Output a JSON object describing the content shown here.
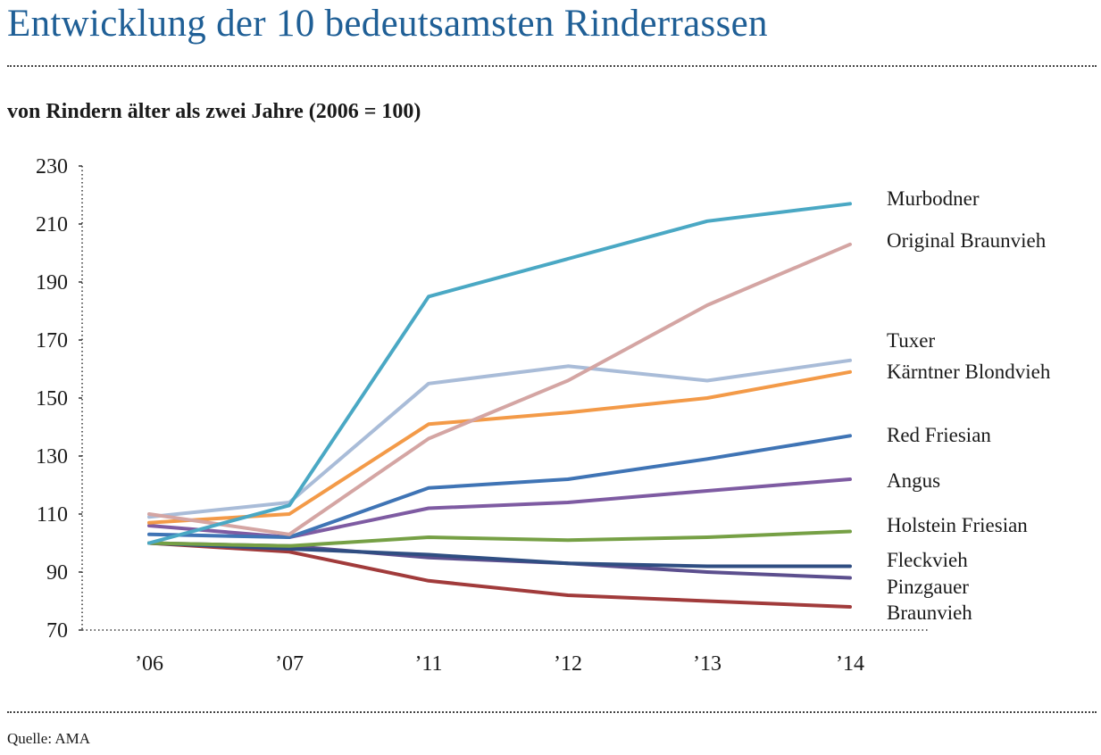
{
  "title": "Entwicklung der 10 bedeutsamsten Rinderrassen",
  "subtitle": "von Rindern älter als zwei Jahre (2006 = 100)",
  "source": "Quelle: AMA",
  "chart_data": {
    "type": "line",
    "title": "Entwicklung der 10 bedeutsamsten Rinderrassen",
    "subtitle": "von Rindern älter als zwei Jahre (2006 = 100)",
    "xlabel": "",
    "ylabel": "",
    "categories": [
      "’06",
      "’07",
      "’11",
      "’12",
      "’13",
      "’14"
    ],
    "ylim": [
      70,
      230
    ],
    "yticks": [
      70,
      90,
      110,
      130,
      150,
      170,
      190,
      210,
      230
    ],
    "grid": false,
    "legend": "direct labels at right end of lines",
    "series": [
      {
        "name": "Murbodner",
        "color": "#4aa8c4",
        "values": [
          100,
          113,
          185,
          198,
          211,
          217
        ]
      },
      {
        "name": "Original Braunvieh",
        "color": "#d4a5a3",
        "values": [
          110,
          103,
          136,
          156,
          182,
          203
        ]
      },
      {
        "name": "Tuxer",
        "color": "#a9bcd8",
        "values": [
          109,
          114,
          155,
          161,
          156,
          163
        ]
      },
      {
        "name": "Kärntner Blondvieh",
        "color": "#f39a48",
        "values": [
          107,
          110,
          141,
          145,
          150,
          159
        ]
      },
      {
        "name": "Red Friesian",
        "color": "#3f74b5",
        "values": [
          103,
          102,
          119,
          122,
          129,
          137
        ]
      },
      {
        "name": "Angus",
        "color": "#7e5ba2",
        "values": [
          106,
          102,
          112,
          114,
          118,
          122
        ]
      },
      {
        "name": "Holstein Friesian",
        "color": "#76a045",
        "values": [
          100,
          99,
          102,
          101,
          102,
          104
        ]
      },
      {
        "name": "Fleckvieh",
        "color": "#2f4e82",
        "values": [
          100,
          98,
          96,
          93,
          92,
          92
        ]
      },
      {
        "name": "Pinzgauer",
        "color": "#5c4f8e",
        "values": [
          100,
          99,
          95,
          93,
          90,
          88
        ]
      },
      {
        "name": "Braunvieh",
        "color": "#a13b3b",
        "values": [
          100,
          97,
          87,
          82,
          80,
          78
        ]
      }
    ]
  }
}
